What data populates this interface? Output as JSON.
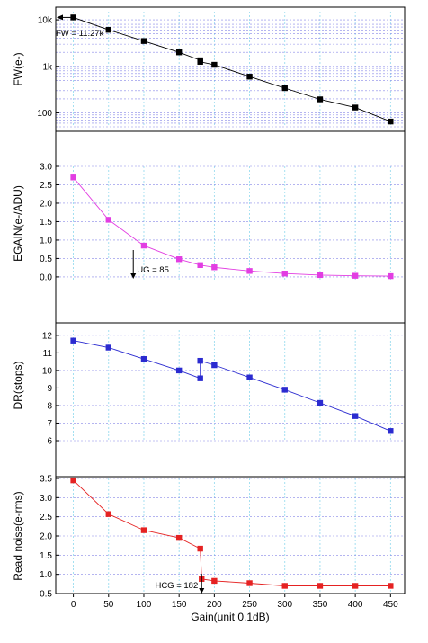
{
  "chart_data": [
    {
      "type": "line",
      "scale": "log",
      "ylabel": "FW(e-)",
      "ylim": [
        50,
        15000
      ],
      "yticks": [
        {
          "v": 100,
          "label": "100"
        },
        {
          "v": 1000,
          "label": "1k"
        },
        {
          "v": 10000,
          "label": "10k"
        }
      ],
      "color": "#000000",
      "x": [
        0,
        50,
        100,
        150,
        180,
        180,
        200,
        250,
        300,
        350,
        400,
        450
      ],
      "y": [
        11270,
        6100,
        3500,
        2000,
        1350,
        1250,
        1080,
        600,
        340,
        195,
        130,
        65
      ],
      "annotations": [
        {
          "text": "FW = 11.27k"
        }
      ],
      "grid": true
    },
    {
      "type": "line",
      "scale": "linear",
      "ylabel": "EGAIN(e-/ADU)",
      "ylim": [
        -0.1,
        3.0
      ],
      "yticks": [
        {
          "v": 0,
          "label": "0.0"
        },
        {
          "v": 0.5,
          "label": "0.5"
        },
        {
          "v": 1,
          "label": "1.0"
        },
        {
          "v": 1.5,
          "label": "1.5"
        },
        {
          "v": 2,
          "label": "2.0"
        },
        {
          "v": 2.5,
          "label": "2.5"
        },
        {
          "v": 3,
          "label": "3.0"
        }
      ],
      "color": "#e23ee2",
      "x": [
        0,
        50,
        100,
        150,
        180,
        200,
        250,
        300,
        350,
        400,
        450
      ],
      "y": [
        2.7,
        1.55,
        0.85,
        0.48,
        0.32,
        0.26,
        0.16,
        0.09,
        0.05,
        0.03,
        0.02
      ],
      "annotations": [
        {
          "text": "UG = 85"
        }
      ],
      "grid": true
    },
    {
      "type": "line",
      "scale": "linear",
      "ylabel": "DR(stops)",
      "ylim": [
        6,
        12.3
      ],
      "yticks": [
        {
          "v": 6,
          "label": "6"
        },
        {
          "v": 7,
          "label": "7"
        },
        {
          "v": 8,
          "label": "8"
        },
        {
          "v": 9,
          "label": "9"
        },
        {
          "v": 10,
          "label": "10"
        },
        {
          "v": 11,
          "label": "11"
        },
        {
          "v": 12,
          "label": "12"
        }
      ],
      "color": "#2b2bd0",
      "x": [
        0,
        50,
        100,
        150,
        180,
        180,
        200,
        250,
        300,
        350,
        400,
        450
      ],
      "y": [
        11.7,
        11.3,
        10.65,
        10.0,
        9.55,
        10.55,
        10.3,
        9.6,
        8.9,
        8.15,
        7.4,
        6.55
      ],
      "annotations": [],
      "grid": true
    },
    {
      "type": "line",
      "scale": "linear",
      "ylabel": "Read noise(e-rms)",
      "xlabel": "Gain(unit 0.1dB)",
      "ylim": [
        0.5,
        3.5
      ],
      "yticks": [
        {
          "v": 0.5,
          "label": "0.5"
        },
        {
          "v": 1,
          "label": "1.0"
        },
        {
          "v": 1.5,
          "label": "1.5"
        },
        {
          "v": 2,
          "label": "2.0"
        },
        {
          "v": 2.5,
          "label": "2.5"
        },
        {
          "v": 3,
          "label": "3.0"
        },
        {
          "v": 3.5,
          "label": "3.5"
        }
      ],
      "color": "#e52222",
      "x": [
        0,
        50,
        100,
        150,
        180,
        182,
        200,
        250,
        300,
        350,
        400,
        450
      ],
      "y": [
        3.45,
        2.57,
        2.15,
        1.95,
        1.67,
        0.88,
        0.83,
        0.77,
        0.7,
        0.7,
        0.7,
        0.7
      ],
      "annotations": [
        {
          "text": "HCG = 182"
        }
      ],
      "grid": true
    }
  ],
  "x_axis": {
    "xlim": [
      -25,
      470
    ],
    "ticks": [
      0,
      50,
      100,
      150,
      200,
      250,
      300,
      350,
      400,
      450
    ],
    "tick_labels": [
      "0",
      "50",
      "100",
      "150",
      "200",
      "250",
      "300",
      "350",
      "400",
      "450"
    ]
  }
}
